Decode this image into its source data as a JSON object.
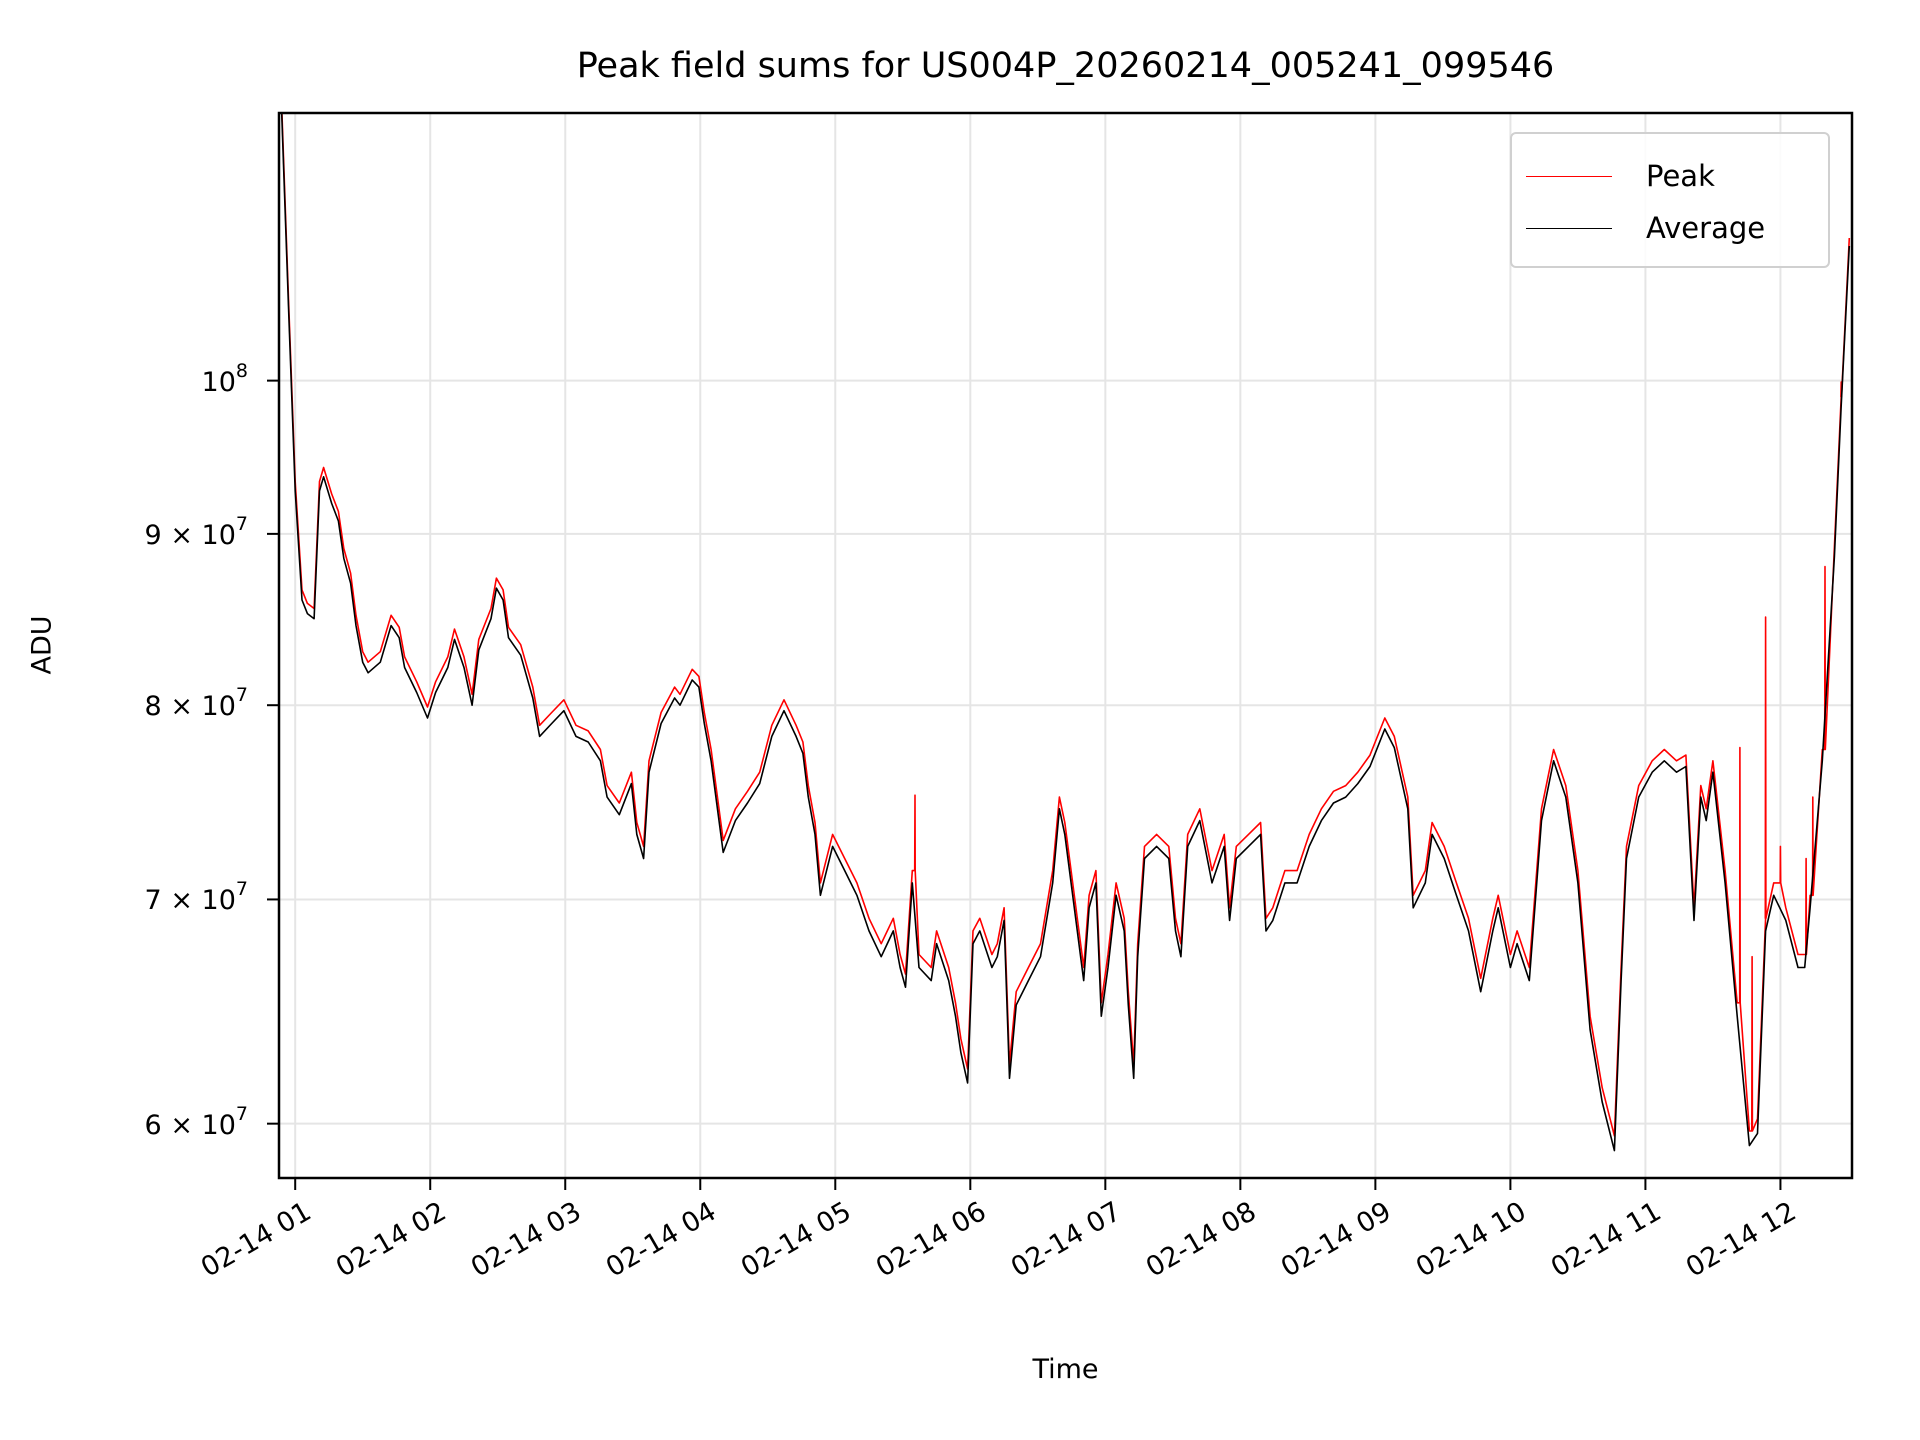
{
  "chart_data": {
    "type": "line",
    "title": "Peak field sums for US004P_20260214_005241_099546",
    "xlabel": "Time",
    "ylabel": "ADU",
    "x_units": "hours since 02-14 00:00",
    "xlim": [
      0.88,
      12.53
    ],
    "ylim": [
      57800000,
      120200000
    ],
    "yscale": "log",
    "grid": true,
    "legend_placement": "top-right",
    "colors": {
      "peak": "#ff0000",
      "average": "#000000",
      "grid": "#e5e5e5"
    },
    "xticks": [
      {
        "value": 1,
        "label": "02-14 01"
      },
      {
        "value": 2,
        "label": "02-14 02"
      },
      {
        "value": 3,
        "label": "02-14 03"
      },
      {
        "value": 4,
        "label": "02-14 04"
      },
      {
        "value": 5,
        "label": "02-14 05"
      },
      {
        "value": 6,
        "label": "02-14 06"
      },
      {
        "value": 7,
        "label": "02-14 07"
      },
      {
        "value": 8,
        "label": "02-14 08"
      },
      {
        "value": 9,
        "label": "02-14 09"
      },
      {
        "value": 10,
        "label": "02-14 10"
      },
      {
        "value": 11,
        "label": "02-14 11"
      },
      {
        "value": 12,
        "label": "02-14 12"
      }
    ],
    "yticks": [
      {
        "value": 100000000,
        "mantissa": "",
        "times": "",
        "base": "10",
        "exp": "8"
      },
      {
        "value": 90000000,
        "mantissa": "9",
        "times": "×",
        "base": "10",
        "exp": "7"
      },
      {
        "value": 80000000,
        "mantissa": "8",
        "times": "×",
        "base": "10",
        "exp": "7"
      },
      {
        "value": 70000000,
        "mantissa": "7",
        "times": "×",
        "base": "10",
        "exp": "7"
      },
      {
        "value": 60000000,
        "mantissa": "6",
        "times": "×",
        "base": "10",
        "exp": "7"
      }
    ],
    "x": [
      0.9,
      0.95,
      1.0,
      1.05,
      1.09,
      1.14,
      1.18,
      1.21,
      1.27,
      1.32,
      1.36,
      1.41,
      1.45,
      1.5,
      1.54,
      1.63,
      1.71,
      1.77,
      1.81,
      1.9,
      1.98,
      2.04,
      2.13,
      2.18,
      2.25,
      2.31,
      2.36,
      2.45,
      2.49,
      2.54,
      2.58,
      2.67,
      2.76,
      2.81,
      2.9,
      2.99,
      3.08,
      3.17,
      3.26,
      3.31,
      3.4,
      3.49,
      3.53,
      3.58,
      3.62,
      3.71,
      3.81,
      3.85,
      3.94,
      3.99,
      4.03,
      4.08,
      4.17,
      4.26,
      4.35,
      4.44,
      4.53,
      4.62,
      4.71,
      4.76,
      4.8,
      4.85,
      4.89,
      4.98,
      5.07,
      5.16,
      5.25,
      5.34,
      5.43,
      5.48,
      5.52,
      5.57,
      5.62,
      5.71,
      5.75,
      5.84,
      5.89,
      5.93,
      5.98,
      6.02,
      6.07,
      6.16,
      6.2,
      6.25,
      6.29,
      6.34,
      6.43,
      6.52,
      6.61,
      6.66,
      6.7,
      6.77,
      6.84,
      6.88,
      6.93,
      6.97,
      7.02,
      7.08,
      7.14,
      7.17,
      7.21,
      7.24,
      7.29,
      7.38,
      7.47,
      7.52,
      7.56,
      7.61,
      7.7,
      7.79,
      7.88,
      7.92,
      7.97,
      8.06,
      8.15,
      8.19,
      8.24,
      8.33,
      8.42,
      8.51,
      8.6,
      8.69,
      8.78,
      8.87,
      8.96,
      9.07,
      9.14,
      9.24,
      9.28,
      9.37,
      9.42,
      9.51,
      9.6,
      9.69,
      9.78,
      9.87,
      9.91,
      10.0,
      10.05,
      10.14,
      10.23,
      10.32,
      10.41,
      10.5,
      10.59,
      10.68,
      10.77,
      10.82,
      10.86,
      10.95,
      11.05,
      11.14,
      11.23,
      11.3,
      11.36,
      11.41,
      11.45,
      11.5,
      11.59,
      11.68,
      11.77,
      11.83,
      11.89,
      11.95,
      12.04,
      12.13,
      12.18,
      12.22,
      12.31,
      12.4,
      12.45,
      12.51
    ],
    "series": [
      {
        "name": "Peak",
        "values_1e7": [
          12.08,
          10.58,
          9.33,
          8.66,
          8.58,
          8.55,
          9.33,
          9.42,
          9.25,
          9.14,
          8.91,
          8.76,
          8.51,
          8.3,
          8.24,
          8.3,
          8.51,
          8.44,
          8.27,
          8.13,
          7.99,
          8.13,
          8.27,
          8.43,
          8.27,
          8.06,
          8.37,
          8.55,
          8.73,
          8.66,
          8.44,
          8.34,
          8.1,
          7.89,
          7.96,
          8.03,
          7.89,
          7.86,
          7.76,
          7.57,
          7.48,
          7.64,
          7.38,
          7.26,
          7.7,
          7.96,
          8.1,
          8.06,
          8.2,
          8.16,
          7.96,
          7.76,
          7.29,
          7.45,
          7.54,
          7.64,
          7.89,
          8.03,
          7.89,
          7.8,
          7.57,
          7.38,
          7.08,
          7.32,
          7.2,
          7.08,
          6.91,
          6.79,
          6.91,
          6.74,
          6.65,
          7.14,
          6.74,
          6.68,
          6.85,
          6.68,
          6.52,
          6.36,
          6.23,
          6.85,
          6.91,
          6.74,
          6.79,
          6.96,
          6.25,
          6.57,
          6.68,
          6.79,
          7.14,
          7.51,
          7.38,
          7.02,
          6.68,
          7.02,
          7.14,
          6.52,
          6.74,
          7.08,
          6.91,
          6.57,
          6.25,
          6.79,
          7.26,
          7.32,
          7.26,
          6.91,
          6.79,
          7.32,
          7.45,
          7.14,
          7.32,
          6.96,
          7.26,
          7.32,
          7.38,
          6.91,
          6.96,
          7.14,
          7.14,
          7.32,
          7.45,
          7.54,
          7.57,
          7.64,
          7.73,
          7.93,
          7.83,
          7.51,
          7.02,
          7.14,
          7.38,
          7.26,
          7.08,
          6.91,
          6.63,
          6.91,
          7.02,
          6.74,
          6.85,
          6.68,
          7.45,
          7.76,
          7.57,
          7.14,
          6.46,
          6.15,
          5.95,
          6.68,
          7.26,
          7.57,
          7.7,
          7.76,
          7.7,
          7.73,
          6.96,
          7.57,
          7.45,
          7.7,
          7.14,
          6.52,
          5.97,
          6.02,
          6.91,
          7.08,
          6.96,
          6.74,
          6.74,
          7.02,
          7.76,
          8.92,
          9.89,
          11.03
        ]
      },
      {
        "name": "Average",
        "values_1e7": [
          12.02,
          10.52,
          9.27,
          8.6,
          8.52,
          8.49,
          9.27,
          9.36,
          9.19,
          9.08,
          8.85,
          8.7,
          8.45,
          8.24,
          8.18,
          8.24,
          8.45,
          8.38,
          8.21,
          8.07,
          7.93,
          8.07,
          8.21,
          8.37,
          8.21,
          8.0,
          8.31,
          8.49,
          8.67,
          8.6,
          8.38,
          8.28,
          8.04,
          7.83,
          7.9,
          7.97,
          7.83,
          7.8,
          7.7,
          7.51,
          7.42,
          7.58,
          7.32,
          7.2,
          7.64,
          7.9,
          8.04,
          8.0,
          8.14,
          8.1,
          7.9,
          7.7,
          7.23,
          7.39,
          7.48,
          7.58,
          7.83,
          7.97,
          7.83,
          7.74,
          7.51,
          7.32,
          7.02,
          7.26,
          7.14,
          7.02,
          6.85,
          6.73,
          6.85,
          6.68,
          6.59,
          7.08,
          6.68,
          6.62,
          6.79,
          6.62,
          6.46,
          6.3,
          6.17,
          6.79,
          6.85,
          6.68,
          6.73,
          6.9,
          6.19,
          6.51,
          6.62,
          6.73,
          7.08,
          7.45,
          7.32,
          6.96,
          6.62,
          6.96,
          7.08,
          6.46,
          6.68,
          7.02,
          6.85,
          6.51,
          6.19,
          6.73,
          7.2,
          7.26,
          7.2,
          6.85,
          6.73,
          7.26,
          7.39,
          7.08,
          7.26,
          6.9,
          7.2,
          7.26,
          7.32,
          6.85,
          6.9,
          7.08,
          7.08,
          7.26,
          7.39,
          7.48,
          7.51,
          7.58,
          7.67,
          7.87,
          7.77,
          7.45,
          6.96,
          7.08,
          7.32,
          7.2,
          7.02,
          6.85,
          6.57,
          6.85,
          6.96,
          6.68,
          6.79,
          6.62,
          7.39,
          7.7,
          7.51,
          7.08,
          6.4,
          6.09,
          5.89,
          6.62,
          7.2,
          7.51,
          7.64,
          7.7,
          7.64,
          7.67,
          6.9,
          7.51,
          7.39,
          7.64,
          7.08,
          6.46,
          5.91,
          5.96,
          6.85,
          7.02,
          6.9,
          6.68,
          6.68,
          6.96,
          7.7,
          8.86,
          9.83,
          10.97
        ]
      }
    ],
    "peak_spikes": [
      {
        "x": 5.59,
        "value_1e7": 7.52
      },
      {
        "x": 11.7,
        "value_1e7": 7.77
      },
      {
        "x": 11.79,
        "value_1e7": 6.73
      },
      {
        "x": 11.89,
        "value_1e7": 8.5
      },
      {
        "x": 12.0,
        "value_1e7": 7.26
      },
      {
        "x": 12.19,
        "value_1e7": 7.2
      },
      {
        "x": 12.24,
        "value_1e7": 7.51
      },
      {
        "x": 12.33,
        "value_1e7": 8.8
      },
      {
        "x": 12.45,
        "value_1e7": 9.99
      }
    ],
    "legend": [
      "Peak",
      "Average"
    ]
  }
}
